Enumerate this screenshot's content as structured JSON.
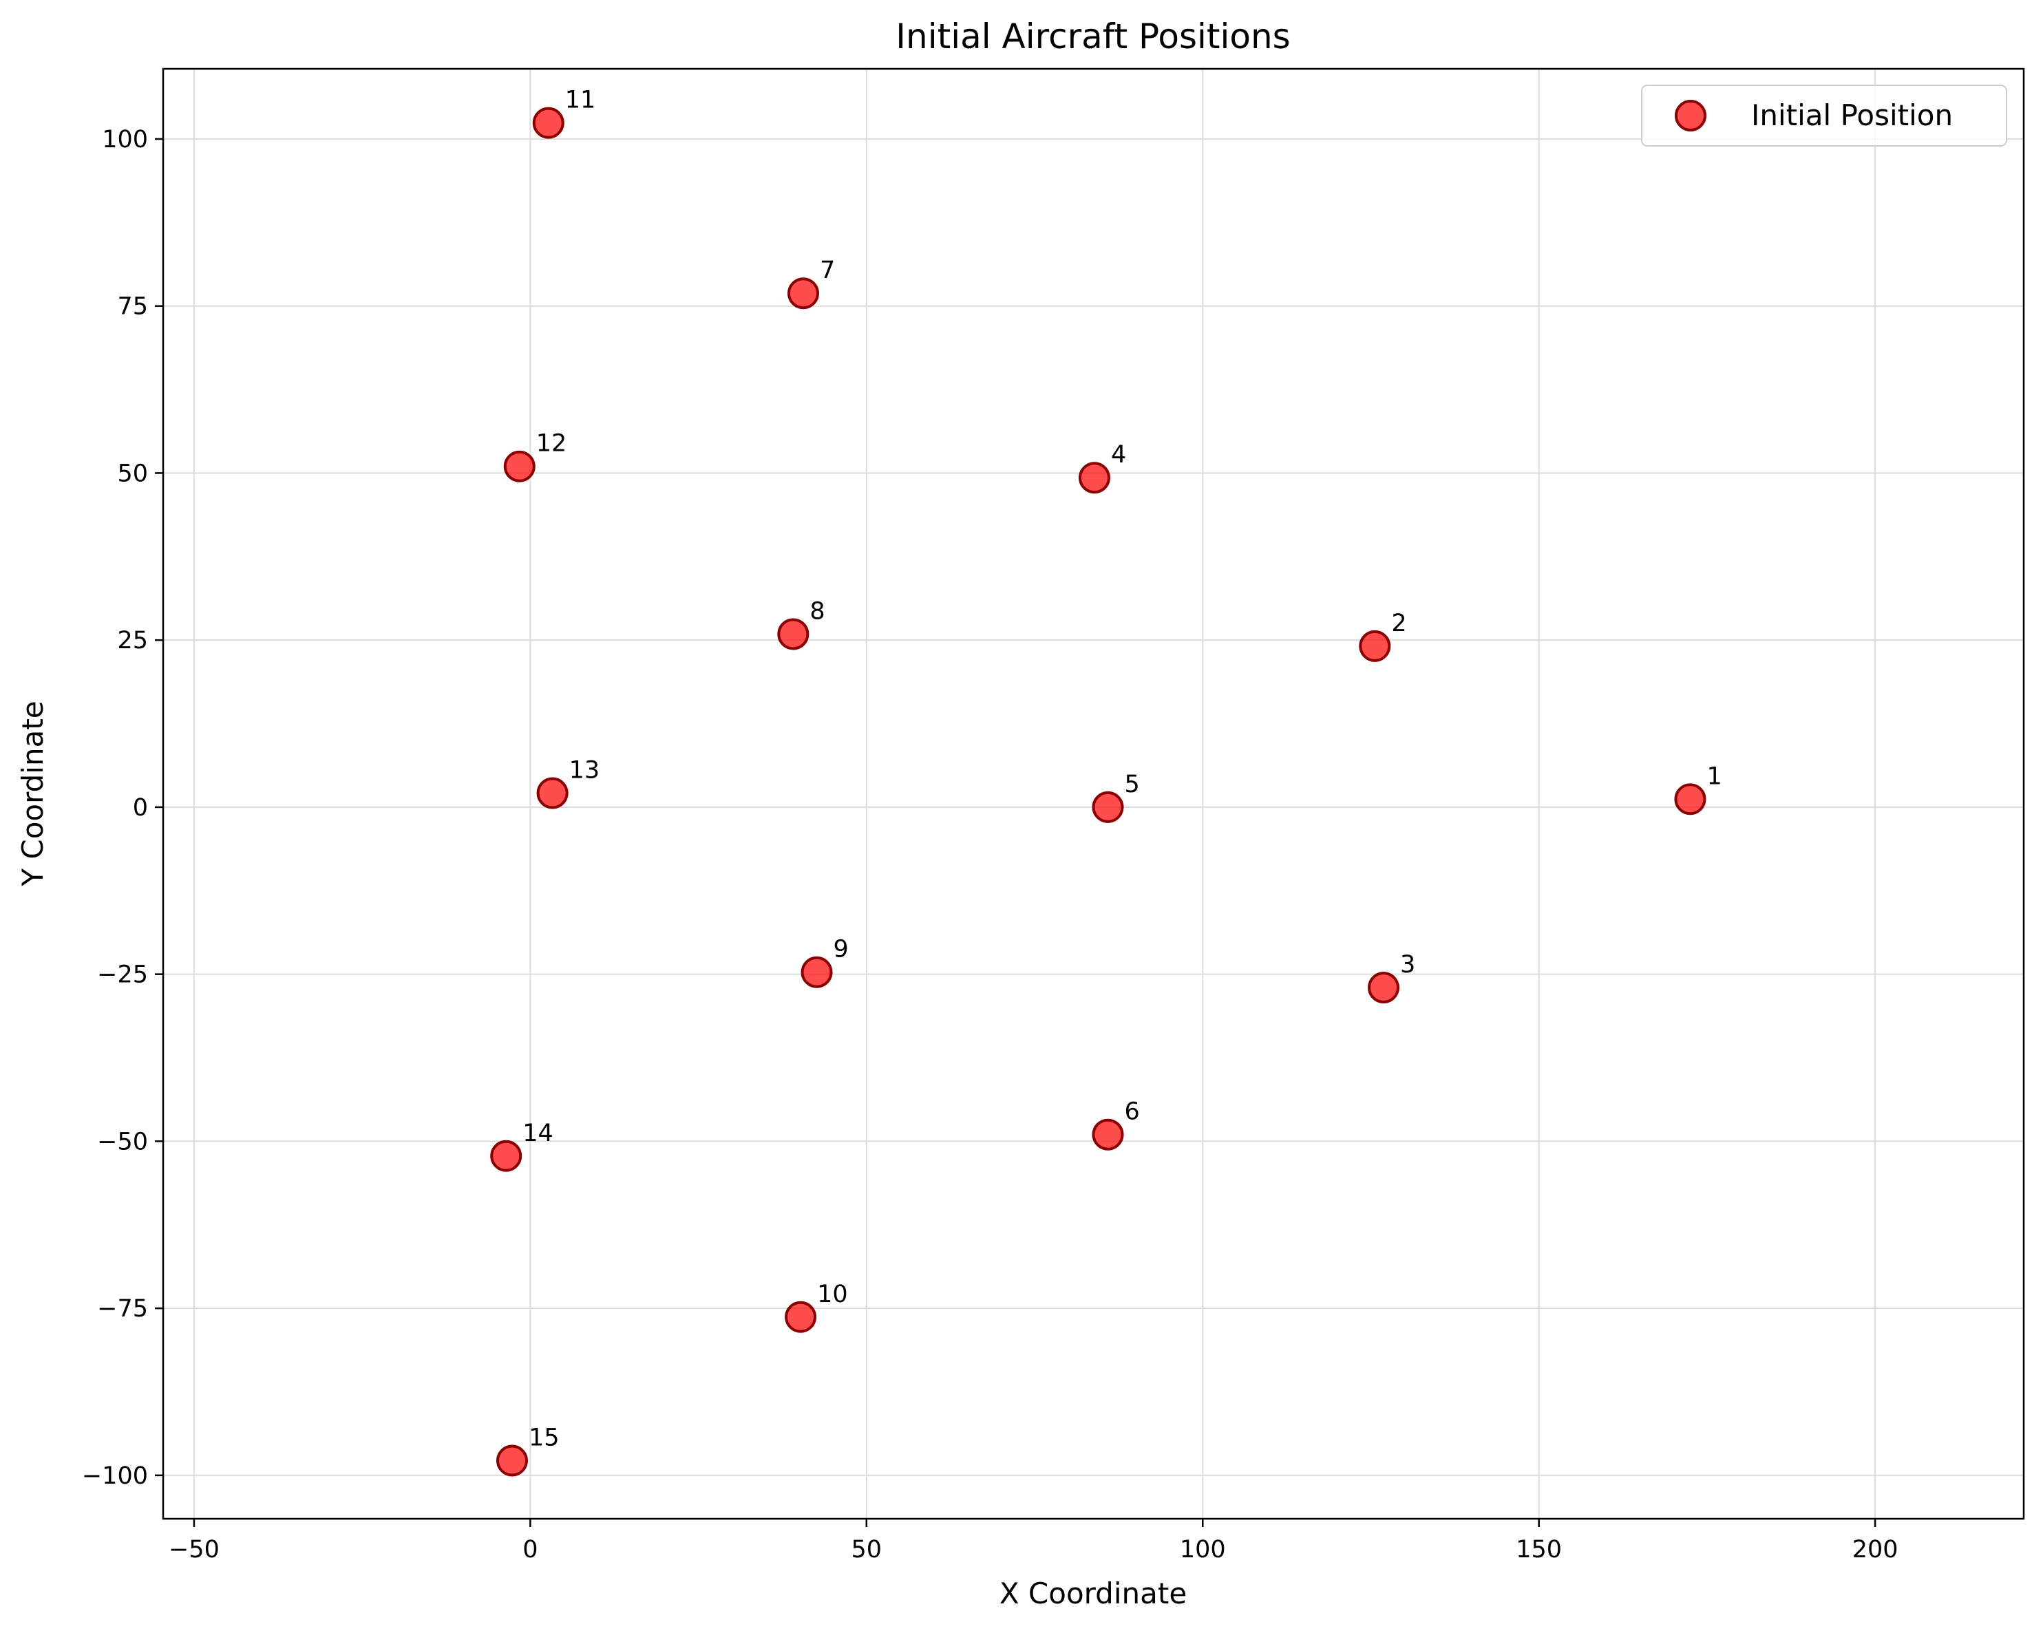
{
  "chart_data": {
    "type": "scatter",
    "title": "Initial Aircraft Positions",
    "xlabel": "X Coordinate",
    "ylabel": "Y Coordinate",
    "xlim": [
      -54.6,
      222.1
    ],
    "ylim": [
      -106.5,
      110.5
    ],
    "xticks": [
      -50,
      0,
      50,
      100,
      150,
      200
    ],
    "yticks": [
      -100,
      -75,
      -50,
      -25,
      0,
      25,
      50,
      75,
      100
    ],
    "xtick_labels": [
      "−50",
      "0",
      "50",
      "100",
      "150",
      "200"
    ],
    "ytick_labels": [
      "−100",
      "−75",
      "−50",
      "−25",
      "0",
      "25",
      "50",
      "75",
      "100"
    ],
    "grid": true,
    "legend_position": "top-right",
    "series": [
      {
        "name": "Initial Position",
        "color": "#ff0000",
        "edge_color": "#8b0000",
        "points": [
          {
            "label": "1",
            "x": 172.5,
            "y": 1.2
          },
          {
            "label": "2",
            "x": 125.6,
            "y": 24.1
          },
          {
            "label": "3",
            "x": 126.9,
            "y": -27.0
          },
          {
            "label": "4",
            "x": 83.9,
            "y": 49.3
          },
          {
            "label": "5",
            "x": 85.9,
            "y": 0.0
          },
          {
            "label": "6",
            "x": 85.9,
            "y": -49.0
          },
          {
            "label": "7",
            "x": 40.6,
            "y": 76.9
          },
          {
            "label": "8",
            "x": 39.1,
            "y": 25.9
          },
          {
            "label": "9",
            "x": 42.6,
            "y": -24.7
          },
          {
            "label": "10",
            "x": 40.2,
            "y": -76.3
          },
          {
            "label": "11",
            "x": 2.7,
            "y": 102.4
          },
          {
            "label": "12",
            "x": -1.6,
            "y": 51.0
          },
          {
            "label": "13",
            "x": 3.3,
            "y": 2.1
          },
          {
            "label": "14",
            "x": -3.6,
            "y": -52.2
          },
          {
            "label": "15",
            "x": -2.7,
            "y": -97.8
          }
        ]
      }
    ]
  }
}
